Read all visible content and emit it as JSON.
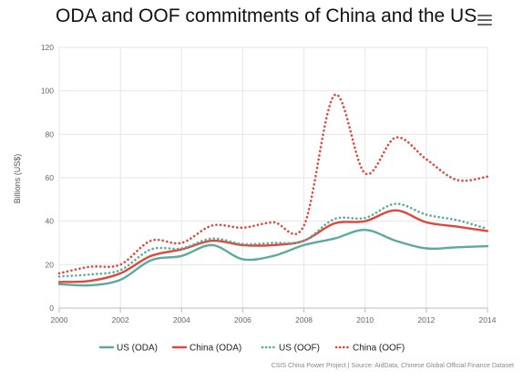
{
  "chart_data": {
    "type": "line",
    "title": "ODA and OOF commitments of China and the US",
    "ylabel": "Billions (US$)",
    "xlabel": "",
    "xlim": [
      2000,
      2014
    ],
    "ylim": [
      0,
      120
    ],
    "x_ticks": [
      "2000",
      "2002",
      "2004",
      "2006",
      "2008",
      "2010",
      "2012",
      "2014"
    ],
    "y_ticks": [
      "0",
      "20",
      "40",
      "60",
      "80",
      "100",
      "120"
    ],
    "grid": true,
    "legend_position": "bottom",
    "x": [
      2000,
      2001,
      2002,
      2003,
      2004,
      2005,
      2006,
      2007,
      2008,
      2009,
      2010,
      2011,
      2012,
      2013,
      2014
    ],
    "series": [
      {
        "name": "US (ODA)",
        "color": "#5aab9e",
        "style": "solid",
        "values": [
          11,
          10.5,
          13,
          22,
          24,
          29,
          22.5,
          24,
          29,
          32,
          36,
          31,
          27.5,
          28,
          28.5
        ]
      },
      {
        "name": "China (ODA)",
        "color": "#e0473a",
        "style": "solid",
        "values": [
          12,
          12.5,
          16,
          24,
          27,
          31,
          29,
          29,
          31,
          39,
          40,
          45,
          39.5,
          37.5,
          35.5
        ]
      },
      {
        "name": "US (OOF)",
        "color": "#5aab9e",
        "style": "dotted",
        "values": [
          14.5,
          15.5,
          17.5,
          27,
          27.5,
          32,
          29.5,
          30,
          31,
          41,
          41.5,
          48,
          43,
          40.5,
          36.5
        ]
      },
      {
        "name": "China (OOF)",
        "color": "#e0473a",
        "style": "dotted",
        "values": [
          16,
          19,
          20,
          31,
          30,
          38,
          37,
          39.5,
          38,
          98,
          62,
          78.5,
          68.5,
          59,
          60.5
        ]
      }
    ]
  },
  "credits": "CSIS China Power Project | Source: AidData, Chinese Global Official Finance Dataset"
}
